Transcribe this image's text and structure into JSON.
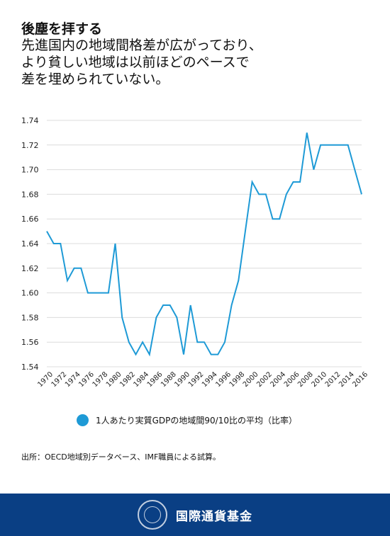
{
  "header": {
    "title": "後塵を拝する",
    "subtitle_lines": [
      "先進国内の地域間格差が広がっており、",
      "より貧しい地域は以前ほどのペースで",
      "差を埋められていない。"
    ]
  },
  "chart_data": {
    "type": "line",
    "title": "",
    "xlabel": "",
    "ylabel": "",
    "ylim": [
      1.54,
      1.74
    ],
    "yticks": [
      "1.54",
      "1.56",
      "1.58",
      "1.60",
      "1.62",
      "1.64",
      "1.66",
      "1.68",
      "1.70",
      "1.72",
      "1.74"
    ],
    "xticks": [
      "1970",
      "1972",
      "1974",
      "1976",
      "1978",
      "1980",
      "1982",
      "1984",
      "1986",
      "1988",
      "1990",
      "1992",
      "1994",
      "1996",
      "1998",
      "2000",
      "2002",
      "2004",
      "2006",
      "2008",
      "2010",
      "2012",
      "2014",
      "2016"
    ],
    "grid": true,
    "legend_position": "bottom",
    "series": [
      {
        "name": "1人あたり実質GDPの地域間90/10比の平均（比率）",
        "color": "#1e9ad6",
        "x": [
          1970,
          1971,
          1972,
          1973,
          1974,
          1975,
          1976,
          1977,
          1978,
          1979,
          1980,
          1981,
          1982,
          1983,
          1984,
          1985,
          1986,
          1987,
          1988,
          1989,
          1990,
          1991,
          1992,
          1993,
          1994,
          1995,
          1996,
          1997,
          1998,
          1999,
          2000,
          2001,
          2002,
          2003,
          2004,
          2005,
          2006,
          2007,
          2008,
          2009,
          2010,
          2011,
          2012,
          2013,
          2014,
          2015,
          2016
        ],
        "values": [
          1.65,
          1.64,
          1.64,
          1.61,
          1.62,
          1.62,
          1.6,
          1.6,
          1.6,
          1.6,
          1.64,
          1.58,
          1.56,
          1.55,
          1.56,
          1.55,
          1.58,
          1.59,
          1.59,
          1.58,
          1.55,
          1.59,
          1.56,
          1.56,
          1.55,
          1.55,
          1.56,
          1.59,
          1.61,
          1.65,
          1.69,
          1.68,
          1.68,
          1.66,
          1.66,
          1.68,
          1.69,
          1.69,
          1.73,
          1.7,
          1.72,
          1.72,
          1.72,
          1.72,
          1.72,
          1.7,
          1.68
        ]
      }
    ]
  },
  "legend": {
    "label": "1人あたり実質GDPの地域間90/10比の平均（比率）"
  },
  "source": "出所：OECD地域別データベース、IMF職員による試算。",
  "footer": {
    "org_name": "国際通貨基金"
  }
}
